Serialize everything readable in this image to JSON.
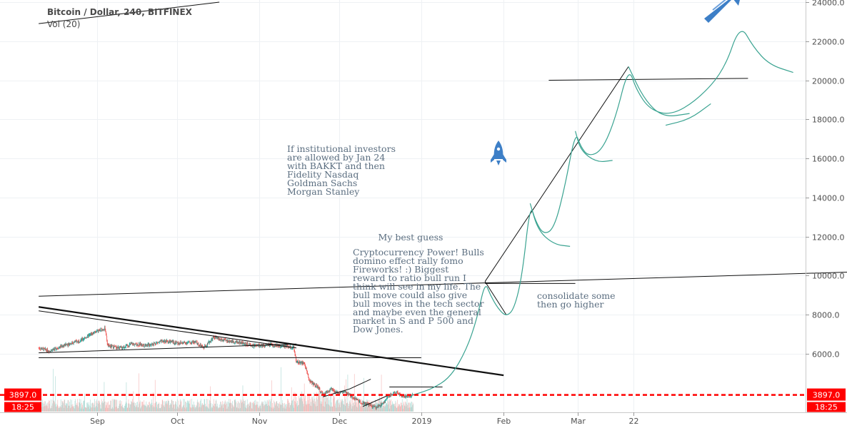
{
  "chart_data": {
    "type": "candlestick",
    "title": "Bitcoin / Dollar, 240, BITFINEX",
    "volume_label": "Vol (20)",
    "ylim": [
      3000,
      24400
    ],
    "y_ticks": [
      6000,
      8000,
      10000,
      12000,
      14000,
      16000,
      18000,
      20000,
      22000,
      24000
    ],
    "y_tick_labels": [
      "6000.0",
      "8000.0",
      "10000.0",
      "12000.0",
      "14000.0",
      "16000.0",
      "18000.0",
      "20000.0",
      "22000.0",
      "24000.0"
    ],
    "x_ticks": [
      {
        "label": "Sep",
        "date": "2018-09-01"
      },
      {
        "label": "Oct",
        "date": "2018-10-01"
      },
      {
        "label": "Nov",
        "date": "2018-11-01"
      },
      {
        "label": "Dec",
        "date": "2018-12-01"
      },
      {
        "label": "2019",
        "date": "2019-01-01"
      },
      {
        "label": "Feb",
        "date": "2019-02-01"
      },
      {
        "label": "Mar",
        "date": "2019-03-01"
      },
      {
        "label": "22",
        "date": "2019-03-22"
      }
    ],
    "price_path": [
      {
        "date": "2018-08-10",
        "y": 6300
      },
      {
        "date": "2018-08-14",
        "y": 6150
      },
      {
        "date": "2018-08-20",
        "y": 6450
      },
      {
        "date": "2018-08-26",
        "y": 6700
      },
      {
        "date": "2018-08-31",
        "y": 7100
      },
      {
        "date": "2018-09-04",
        "y": 7300
      },
      {
        "date": "2018-09-05",
        "y": 6400
      },
      {
        "date": "2018-09-10",
        "y": 6300
      },
      {
        "date": "2018-09-14",
        "y": 6500
      },
      {
        "date": "2018-09-20",
        "y": 6450
      },
      {
        "date": "2018-09-26",
        "y": 6650
      },
      {
        "date": "2018-10-02",
        "y": 6550
      },
      {
        "date": "2018-10-08",
        "y": 6600
      },
      {
        "date": "2018-10-11",
        "y": 6300
      },
      {
        "date": "2018-10-15",
        "y": 6850
      },
      {
        "date": "2018-10-18",
        "y": 6700
      },
      {
        "date": "2018-10-24",
        "y": 6600
      },
      {
        "date": "2018-10-30",
        "y": 6400
      },
      {
        "date": "2018-11-05",
        "y": 6450
      },
      {
        "date": "2018-11-11",
        "y": 6400
      },
      {
        "date": "2018-11-14",
        "y": 6300
      },
      {
        "date": "2018-11-15",
        "y": 5600
      },
      {
        "date": "2018-11-18",
        "y": 5500
      },
      {
        "date": "2018-11-20",
        "y": 4600
      },
      {
        "date": "2018-11-23",
        "y": 4300
      },
      {
        "date": "2018-11-25",
        "y": 3900
      },
      {
        "date": "2018-11-28",
        "y": 4200
      },
      {
        "date": "2018-11-30",
        "y": 4000
      },
      {
        "date": "2018-12-03",
        "y": 4050
      },
      {
        "date": "2018-12-06",
        "y": 3800
      },
      {
        "date": "2018-12-09",
        "y": 3550
      },
      {
        "date": "2018-12-12",
        "y": 3400
      },
      {
        "date": "2018-12-15",
        "y": 3250
      },
      {
        "date": "2018-12-18",
        "y": 3500
      },
      {
        "date": "2018-12-20",
        "y": 3900
      },
      {
        "date": "2018-12-23",
        "y": 4000
      },
      {
        "date": "2018-12-26",
        "y": 3800
      },
      {
        "date": "2018-12-29",
        "y": 3900
      }
    ],
    "last_price": 3897,
    "last_price_label": "3897.0",
    "countdown": "18:25",
    "projection_path": [
      {
        "date": "2018-12-29",
        "y": 3900
      },
      {
        "date": "2019-01-05",
        "y": 4200
      },
      {
        "date": "2019-01-12",
        "y": 4800
      },
      {
        "date": "2019-01-18",
        "y": 6200
      },
      {
        "date": "2019-01-22",
        "y": 7800
      },
      {
        "date": "2019-01-25",
        "y": 9700
      },
      {
        "date": "2019-01-27",
        "y": 9000
      },
      {
        "date": "2019-01-30",
        "y": 8300
      },
      {
        "date": "2019-02-02",
        "y": 7900
      },
      {
        "date": "2019-02-05",
        "y": 8300
      },
      {
        "date": "2019-02-08",
        "y": 10000
      },
      {
        "date": "2019-02-11",
        "y": 13700
      },
      {
        "date": "2019-02-13",
        "y": 12800
      },
      {
        "date": "2019-02-16",
        "y": 12100
      },
      {
        "date": "2019-02-20",
        "y": 12400
      },
      {
        "date": "2019-02-24",
        "y": 14500
      },
      {
        "date": "2019-02-28",
        "y": 17400
      },
      {
        "date": "2019-03-02",
        "y": 16600
      },
      {
        "date": "2019-03-05",
        "y": 16100
      },
      {
        "date": "2019-03-10",
        "y": 16400
      },
      {
        "date": "2019-03-15",
        "y": 18000
      },
      {
        "date": "2019-03-20",
        "y": 20700
      },
      {
        "date": "2019-03-23",
        "y": 19500
      },
      {
        "date": "2019-03-28",
        "y": 18500
      },
      {
        "date": "2019-04-05",
        "y": 18200
      },
      {
        "date": "2019-04-15",
        "y": 19000
      },
      {
        "date": "2019-04-25",
        "y": 20500
      },
      {
        "date": "2019-05-01",
        "y": 22900
      },
      {
        "date": "2019-05-06",
        "y": 21700
      },
      {
        "date": "2019-05-12",
        "y": 20800
      },
      {
        "date": "2019-05-21",
        "y": 20400
      }
    ],
    "projection_branches": [
      [
        {
          "date": "2019-02-11",
          "y": 13700
        },
        {
          "date": "2019-02-14",
          "y": 12300
        },
        {
          "date": "2019-02-20",
          "y": 11600
        },
        {
          "date": "2019-02-26",
          "y": 11500
        }
      ],
      [
        {
          "date": "2019-02-28",
          "y": 17400
        },
        {
          "date": "2019-03-02",
          "y": 16400
        },
        {
          "date": "2019-03-08",
          "y": 15800
        },
        {
          "date": "2019-03-14",
          "y": 15900
        }
      ],
      [
        {
          "date": "2019-03-20",
          "y": 20700
        },
        {
          "date": "2019-03-26",
          "y": 19000
        },
        {
          "date": "2019-04-02",
          "y": 18100
        },
        {
          "date": "2019-04-12",
          "y": 18300
        }
      ],
      [
        {
          "date": "2019-04-03",
          "y": 17700
        },
        {
          "date": "2019-04-12",
          "y": 18000
        },
        {
          "date": "2019-04-20",
          "y": 18800
        }
      ]
    ],
    "trend_lines": [
      {
        "from": {
          "date": "2018-08-10",
          "y": 8400
        },
        "to": {
          "date": "2019-02-01",
          "y": 4900
        },
        "weight": "bold"
      },
      {
        "from": {
          "date": "2018-08-10",
          "y": 8200
        },
        "to": {
          "date": "2018-11-15",
          "y": 6300
        },
        "weight": "thin"
      },
      {
        "from": {
          "date": "2018-08-10",
          "y": 6050
        },
        "to": {
          "date": "2018-11-15",
          "y": 6500
        },
        "weight": "thin"
      },
      {
        "from": {
          "date": "2018-08-10",
          "y": 5800
        },
        "to": {
          "date": "2019-01-01",
          "y": 5800
        },
        "weight": "thin"
      },
      {
        "from": {
          "date": "2018-08-10",
          "y": 8950
        },
        "to": {
          "date": "2019-06-28",
          "y": 10250
        },
        "weight": "thin"
      },
      {
        "from": {
          "date": "2019-01-25",
          "y": 9600
        },
        "to": {
          "date": "2019-02-28",
          "y": 9600
        },
        "weight": "thin"
      },
      {
        "from": {
          "date": "2019-01-25",
          "y": 9700
        },
        "to": {
          "date": "2019-03-20",
          "y": 20700
        },
        "weight": "thin"
      },
      {
        "from": {
          "date": "2019-01-25",
          "y": 9700
        },
        "to": {
          "date": "2019-02-02",
          "y": 8000
        },
        "weight": "thin"
      },
      {
        "from": {
          "date": "2019-02-18",
          "y": 20000
        },
        "to": {
          "date": "2019-05-04",
          "y": 20100
        },
        "weight": "thin"
      },
      {
        "from": {
          "date": "2018-08-10",
          "y": 22900
        },
        "to": {
          "date": "2018-10-17",
          "y": 24000
        },
        "weight": "thin"
      },
      {
        "from": {
          "date": "2018-11-25",
          "y": 3800
        },
        "to": {
          "date": "2018-12-05",
          "y": 4200
        },
        "weight": "thin"
      },
      {
        "from": {
          "date": "2018-12-05",
          "y": 4200
        },
        "to": {
          "date": "2018-12-13",
          "y": 4700
        },
        "weight": "thin"
      },
      {
        "from": {
          "date": "2018-12-10",
          "y": 3300
        },
        "to": {
          "date": "2018-12-20",
          "y": 3900
        },
        "weight": "thin"
      },
      {
        "from": {
          "date": "2018-12-20",
          "y": 4300
        },
        "to": {
          "date": "2019-01-09",
          "y": 4300
        },
        "weight": "thin"
      }
    ],
    "annotations": [
      {
        "id": "institutional",
        "lines": [
          "If institutional investors",
          "are allowed by Jan 24",
          "with BAKKT and then",
          "Fidelity Nasdaq",
          "Goldman Sachs",
          "Morgan Stanley"
        ]
      },
      {
        "id": "best-guess",
        "lines": [
          "My best guess"
        ]
      },
      {
        "id": "power",
        "lines": [
          "Cryptocurrency Power!  Bulls",
          "domino effect rally fomo",
          "Fireworks! :)  Biggest",
          "reward to ratio bull run I",
          "think will see in my life.  The",
          "bull move could also give",
          "bull moves in the tech sector",
          "and maybe even the general",
          "market in S and P 500 and",
          "Dow Jones."
        ]
      },
      {
        "id": "consolidate",
        "lines": [
          "consolidate some",
          "then go higher"
        ]
      }
    ],
    "icons": [
      "rocket-icon",
      "arrow-up-right-icon"
    ],
    "colors": {
      "up": "#26a69a",
      "down": "#ef5350",
      "projection": "#3aa391",
      "price_line": "#ff0000",
      "icon": "#3d7fc7",
      "annotation": "#5b6e80"
    }
  }
}
